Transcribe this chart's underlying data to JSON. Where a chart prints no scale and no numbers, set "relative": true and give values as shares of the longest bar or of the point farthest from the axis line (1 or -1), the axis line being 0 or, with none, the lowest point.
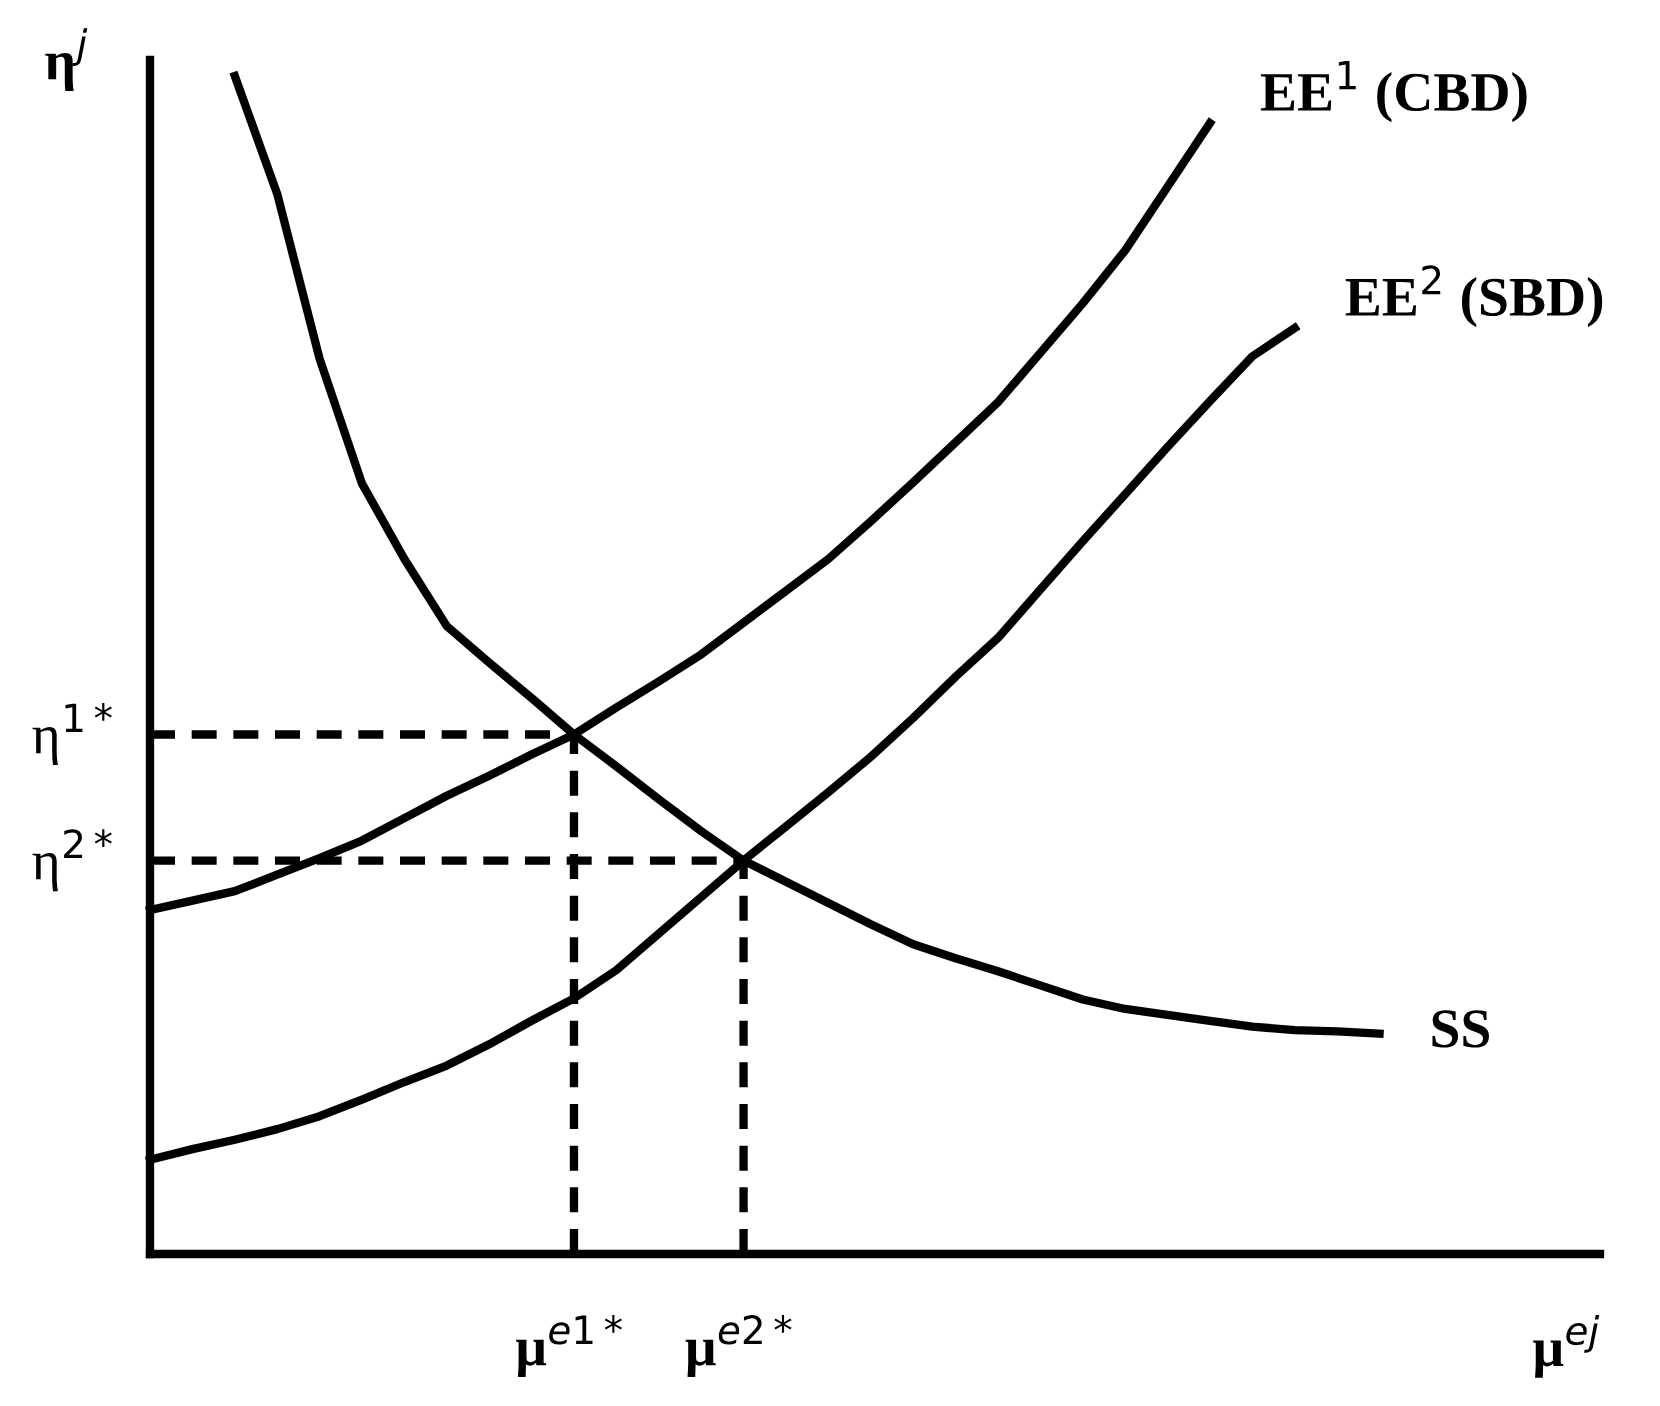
{
  "chart_data": {
    "type": "line",
    "relative": true,
    "xlabel": "μ$^{ej}$",
    "ylabel": "η$^{j}$",
    "tick_labels": "x",
    "legend": false,
    "marker": "none",
    "categories": [
      null,
      null,
      null,
      null,
      null,
      null,
      null,
      null,
      null,
      null,
      "μ$^{e1*}$",
      null,
      null,
      null,
      "μ$^{e2*}$",
      null,
      null,
      null,
      null,
      null,
      null,
      null,
      null,
      null,
      null,
      null,
      null,
      null,
      null,
      null,
      null,
      null,
      null,
      null,
      null
    ],
    "series": [
      {
        "name": "EE$^{1}$ (CBD)",
        "color": "#000000",
        "values": [
          0.292,
          0.3,
          0.308,
          0.322,
          0.336,
          0.351,
          0.37,
          0.389,
          0.406,
          0.424,
          0.441,
          0.464,
          0.486,
          0.509,
          0.536,
          0.563,
          0.59,
          0.622,
          0.655,
          0.689,
          0.723,
          0.765,
          0.807,
          0.852,
          0.906,
          0.96,
          null,
          null,
          null,
          null,
          null,
          null,
          null,
          null,
          null
        ]
      },
      {
        "name": "EE$^{2}$ (SBD)",
        "color": "#000000",
        "values": [
          0.08,
          0.089,
          0.097,
          0.106,
          0.117,
          0.131,
          0.146,
          0.16,
          0.178,
          0.198,
          0.217,
          0.241,
          0.272,
          0.303,
          0.334,
          0.363,
          0.392,
          0.422,
          0.455,
          0.49,
          0.523,
          0.564,
          0.605,
          0.645,
          0.685,
          0.724,
          0.762,
          0.786,
          null,
          null,
          null,
          null,
          null,
          null,
          null
        ]
      },
      {
        "name": "SS",
        "color": "#000000",
        "values": [
          null,
          null,
          1.0,
          0.9,
          0.76,
          0.654,
          0.59,
          0.533,
          0.502,
          0.472,
          0.441,
          0.414,
          0.386,
          0.359,
          0.334,
          0.316,
          0.298,
          0.28,
          0.263,
          0.251,
          0.24,
          0.228,
          0.216,
          0.208,
          0.203,
          0.198,
          0.193,
          0.19,
          0.189,
          0.187,
          null,
          null,
          null,
          null,
          null
        ]
      }
    ],
    "ref_lines": [
      {
        "axis": "y",
        "value": 0.441,
        "label": "η$^{1*}$",
        "color": "#000000",
        "line_style": "dashed"
      },
      {
        "axis": "y",
        "value": 0.334,
        "label": "η$^{2*}$",
        "color": "#000000",
        "line_style": "dashed"
      },
      {
        "axis": "x",
        "value": "μ$^{e1*}$",
        "color": "#000000",
        "line_style": "dashed"
      },
      {
        "axis": "x",
        "value": "μ$^{e2*}$",
        "color": "#000000",
        "line_style": "dashed"
      }
    ]
  }
}
